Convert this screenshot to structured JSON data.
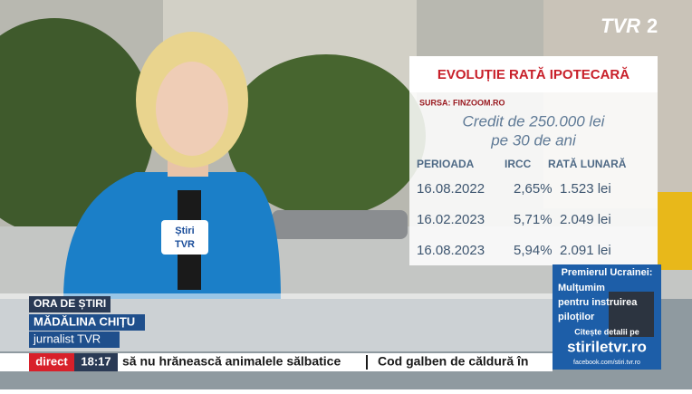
{
  "logo": {
    "brand": "TVR",
    "channel": "2"
  },
  "panel": {
    "title": "EVOLUȚIE RATĂ IPOTECARĂ",
    "source": "SURSA: FINZOOM.RO",
    "subtitle": [
      "Credit de 250.000 lei",
      "pe 30 de ani"
    ],
    "table": {
      "header": [
        "PERIOADA",
        "IRCC",
        "RATĂ LUNARĂ"
      ],
      "rows": [
        [
          "16.08.2022",
          "2,65%",
          "1.523 lei"
        ],
        [
          "16.02.2023",
          "5,71%",
          "2.049 lei"
        ],
        [
          "16.08.2023",
          "5,94%",
          "2.091 lei"
        ]
      ]
    }
  },
  "microphone": {
    "line1": "Știri",
    "line2": "TVR"
  },
  "lower_third": {
    "show": "ORA DE ȘTIRI",
    "name": "MĂDĂLINA CHIȚU",
    "role": "jurnalist TVR"
  },
  "ticker": {
    "live": "direct",
    "time": "18:17",
    "items": [
      "să nu hrănească animalele sălbatice",
      "Cod galben de căldură în"
    ]
  },
  "promo": {
    "headline": "Premierul Ucrainei:",
    "quote": [
      "Mulțumim",
      "pentru instruirea",
      "piloților"
    ],
    "cta": "Citește detalii pe",
    "site": "stiriletvr.ro",
    "facebook": "facebook.com/stiri.tvr.ro"
  }
}
